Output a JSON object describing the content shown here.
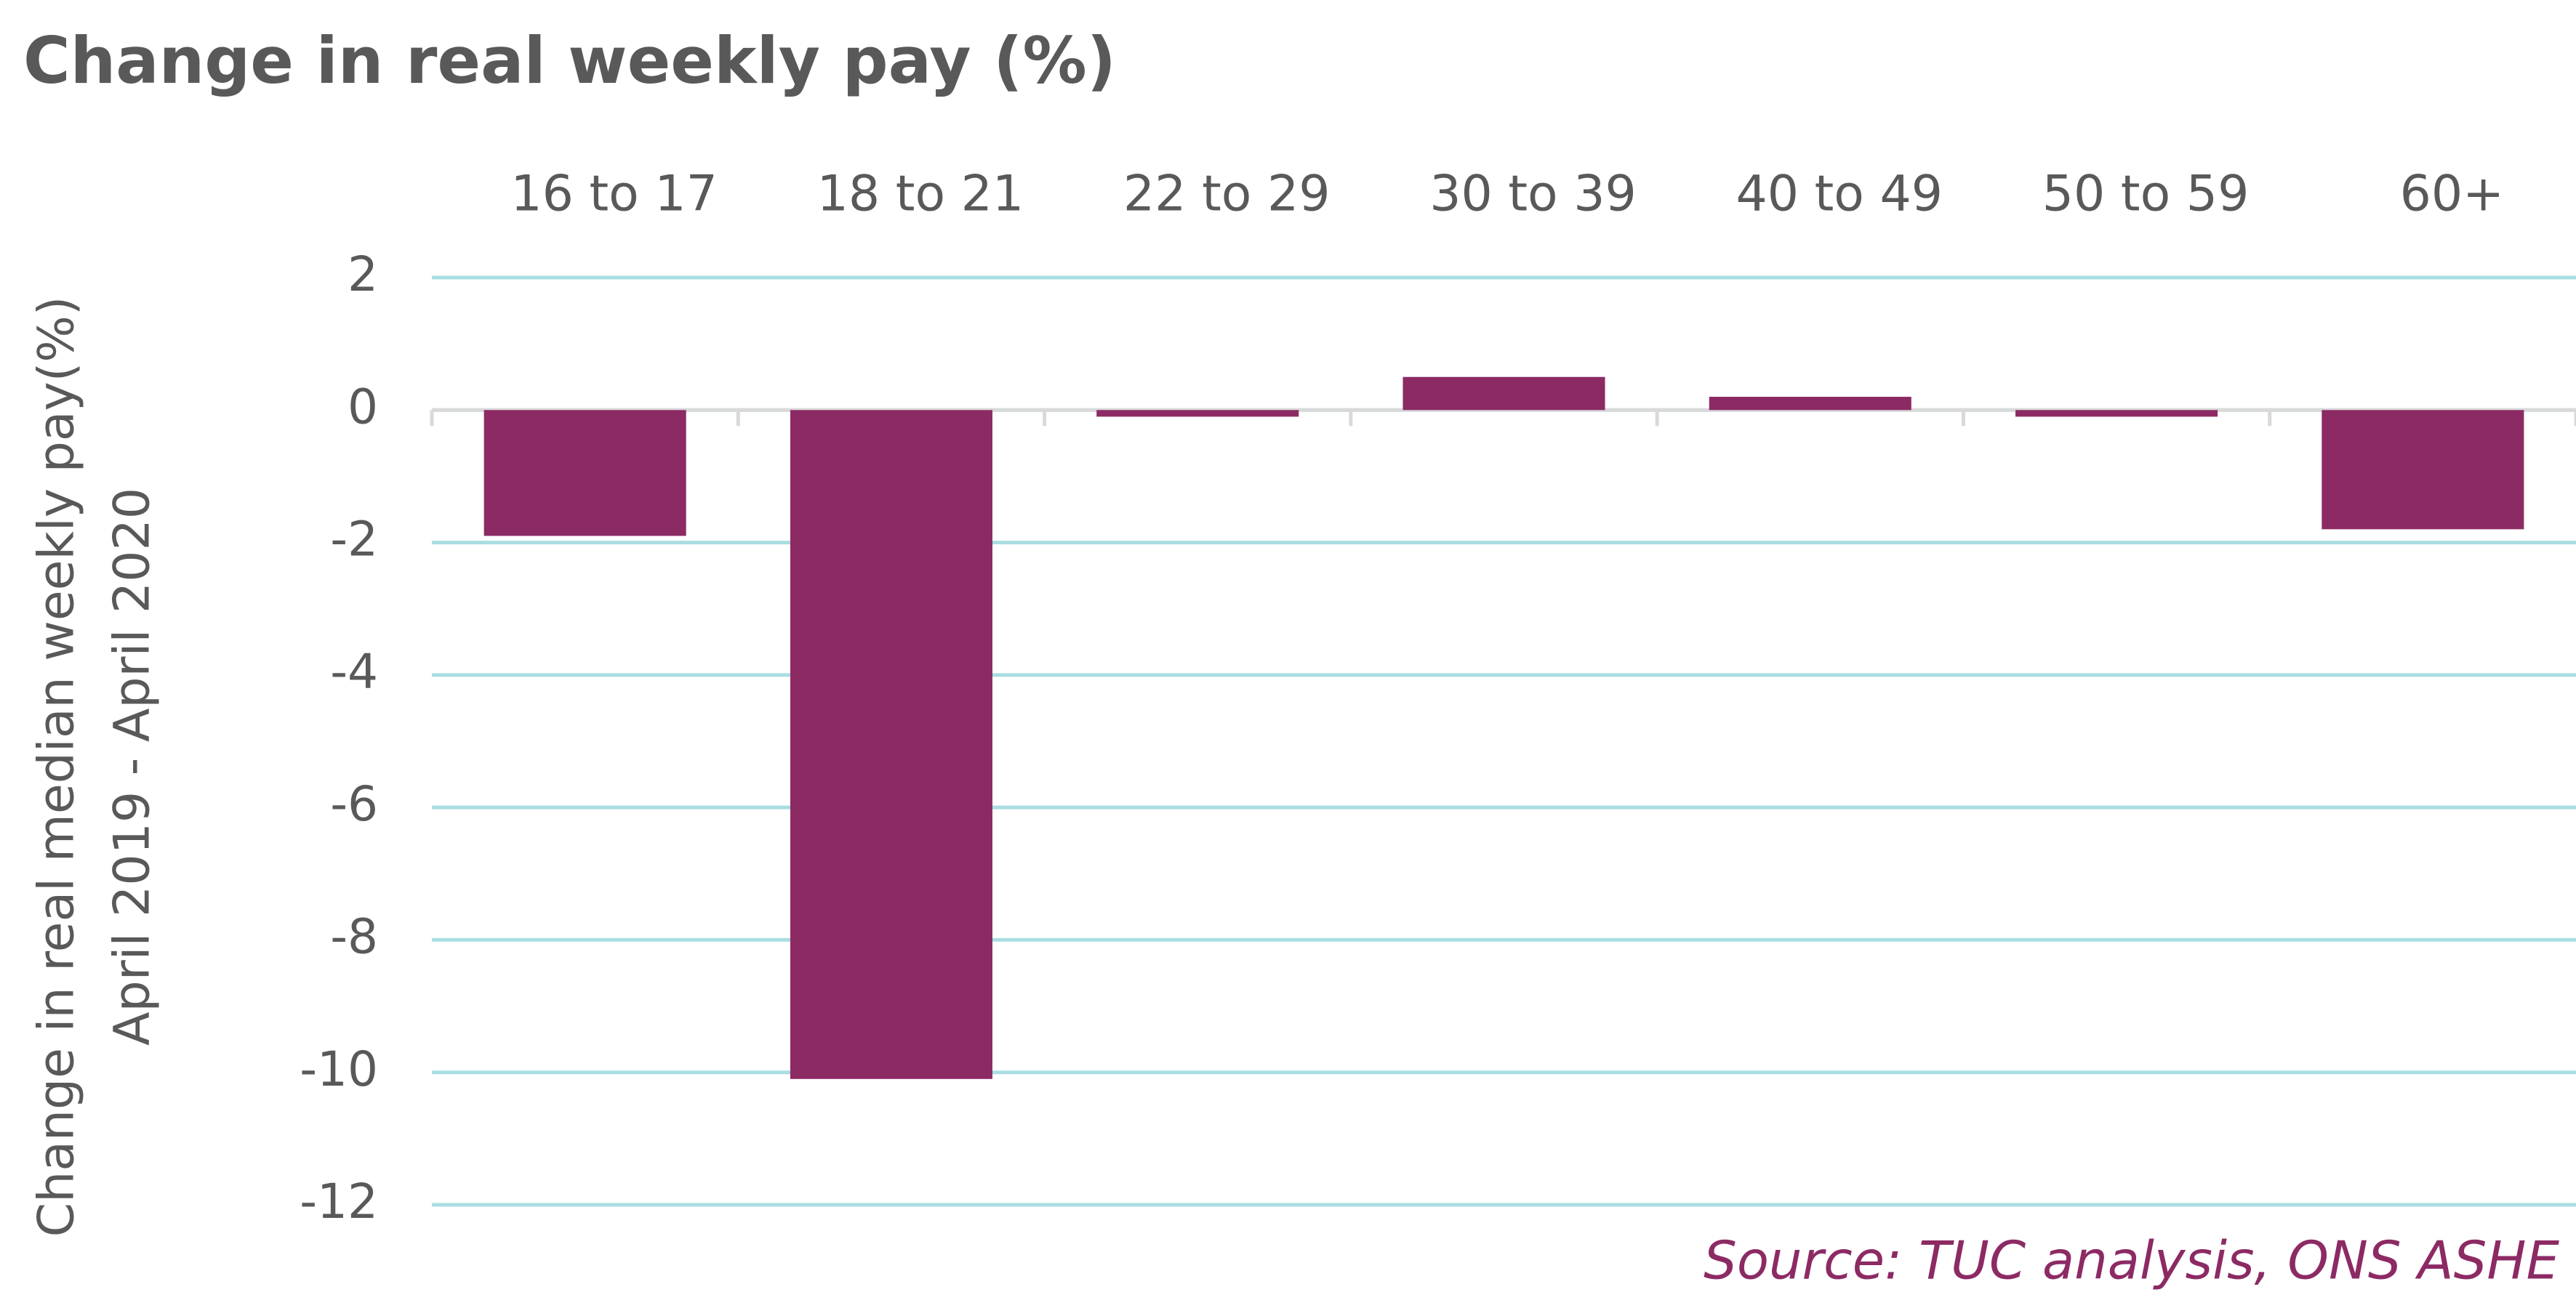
{
  "chart_data": {
    "type": "bar",
    "title": "Change in real weekly pay (%)",
    "y_label": [
      "Change in real median weekly pay(%)",
      "April 2019 - April 2020"
    ],
    "annotation": "Source: TUC analysis, ONS ASHE",
    "categories": [
      "16 to 17",
      "18 to 21",
      "22 to 29",
      "30 to 39",
      "40 to 49",
      "50 to 59",
      "60+"
    ],
    "values": [
      -1.9,
      -10.1,
      -0.1,
      0.5,
      0.2,
      -0.1,
      -1.8
    ],
    "color": "#8c2a64",
    "ylim": [
      -12,
      2
    ],
    "yticks": [
      -12,
      -10,
      -8,
      -6,
      -4,
      -2,
      0,
      2
    ],
    "grid": true
  }
}
